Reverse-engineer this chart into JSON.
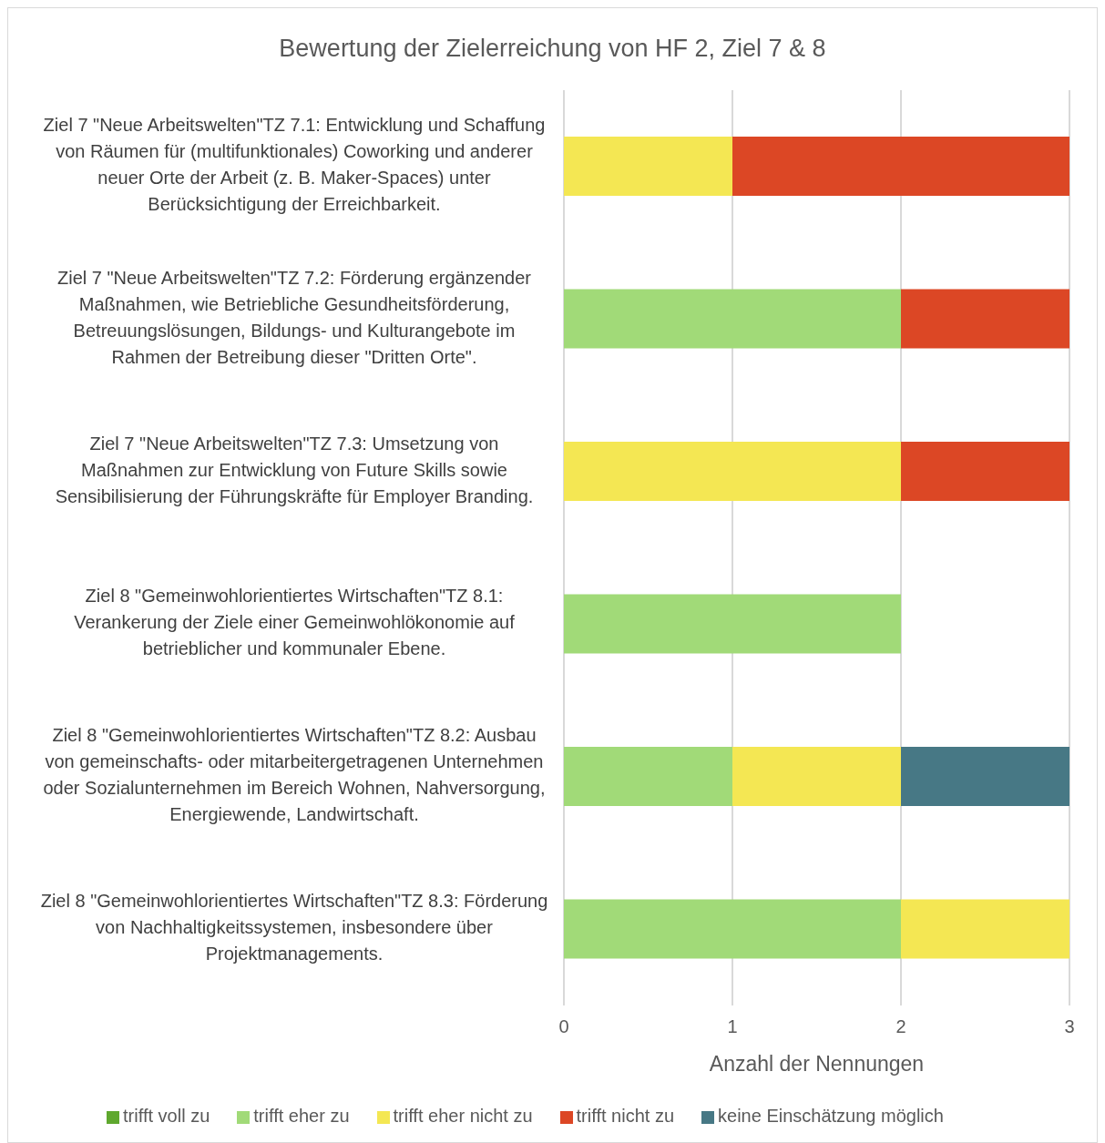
{
  "chart_data": {
    "type": "bar",
    "orientation": "horizontal",
    "stacked": true,
    "title": "Bewertung der Zielerreichung von HF 2, Ziel 7 & 8",
    "xlabel": "Anzahl der Nennungen",
    "categories": [
      "Ziel 7 \"Neue Arbeitswelten\"TZ 7.1: Entwicklung und Schaffung von Räumen für (multifunktionales) Coworking und anderer neuer Orte der Arbeit (z. B. Maker-Spaces) unter Berücksichtigung der Erreichbarkeit.",
      "Ziel 7 \"Neue Arbeitswelten\"TZ 7.2: Förderung ergänzender Maßnahmen, wie Betriebliche Gesundheitsförderung, Betreuungslösungen, Bildungs- und Kulturangebote im Rahmen der Betreibung dieser \"Dritten Orte\".",
      "Ziel 7 \"Neue Arbeitswelten\"TZ 7.3: Umsetzung von Maßnahmen zur Entwicklung von Future Skills sowie Sensibilisierung der Führungskräfte für Employer Branding.",
      "Ziel 8 \"Gemeinwohlorientiertes Wirtschaften\"TZ 8.1: Verankerung der Ziele einer Gemeinwohlökonomie auf betrieblicher und kommunaler Ebene.",
      "Ziel 8 \"Gemeinwohlorientiertes Wirtschaften\"TZ 8.2: Ausbau von gemeinschafts- oder mitarbeitergetragenen Unternehmen oder Sozialunternehmen im Bereich Wohnen, Nahversorgung, Energiewende, Landwirtschaft.",
      "Ziel 8 \"Gemeinwohlorientiertes Wirtschaften\"TZ 8.3: Förderung von Nachhaltigkeitssystemen, insbesondere über Projektmanagements."
    ],
    "series": [
      {
        "name": "trifft voll zu",
        "color": "#5fa82e",
        "values": [
          0,
          0,
          0,
          0,
          0,
          0
        ]
      },
      {
        "name": "trifft eher zu",
        "color": "#a1da78",
        "values": [
          0,
          2,
          0,
          2,
          1,
          2
        ]
      },
      {
        "name": "trifft eher nicht zu",
        "color": "#f4e753",
        "values": [
          1,
          0,
          2,
          0,
          1,
          1
        ]
      },
      {
        "name": "trifft nicht zu",
        "color": "#dc4725",
        "values": [
          2,
          1,
          1,
          0,
          0,
          0
        ]
      },
      {
        "name": "keine Einschätzung möglich",
        "color": "#477885",
        "values": [
          0,
          0,
          0,
          0,
          1,
          0
        ]
      }
    ],
    "xlim": [
      0,
      3
    ],
    "xticks": [
      0,
      1,
      2,
      3
    ],
    "grid": "x",
    "legend": "bottom"
  }
}
